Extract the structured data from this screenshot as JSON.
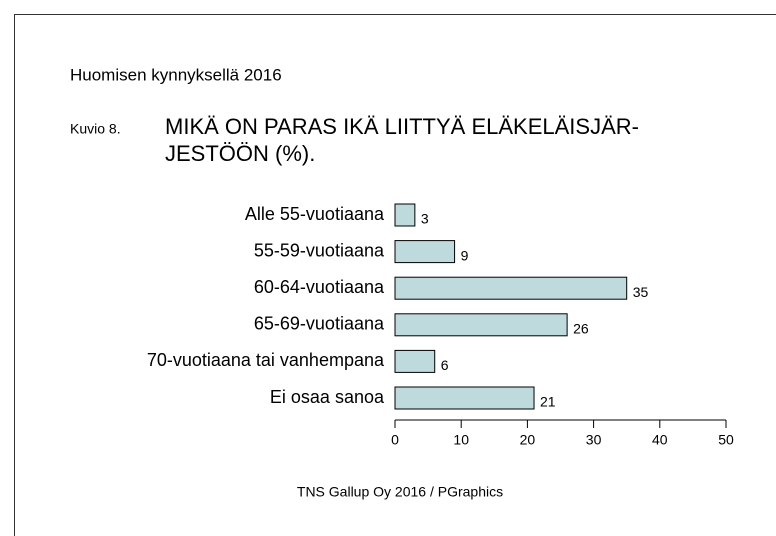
{
  "chart_data": {
    "type": "bar",
    "orientation": "horizontal",
    "subtitle": "Huomisen kynnyksellä 2016",
    "figure_label": "Kuvio 8.",
    "title": [
      "MIKÄ ON PARAS IKÄ LIITTYÄ ELÄKELÄISJÄR-",
      "JESTÖÖN (%)."
    ],
    "categories": [
      "Alle 55-vuotiaana",
      "55-59-vuotiaana",
      "60-64-vuotiaana",
      "65-69-vuotiaana",
      "70-vuotiaana tai vanhempana",
      "Ei osaa sanoa"
    ],
    "values": [
      3,
      9,
      35,
      26,
      6,
      21
    ],
    "color": "#bfdadd",
    "xlim": [
      0,
      50
    ],
    "xticks": [
      0,
      10,
      20,
      30,
      40,
      50
    ],
    "source": "TNS Gallup Oy 2016 / PGraphics"
  }
}
